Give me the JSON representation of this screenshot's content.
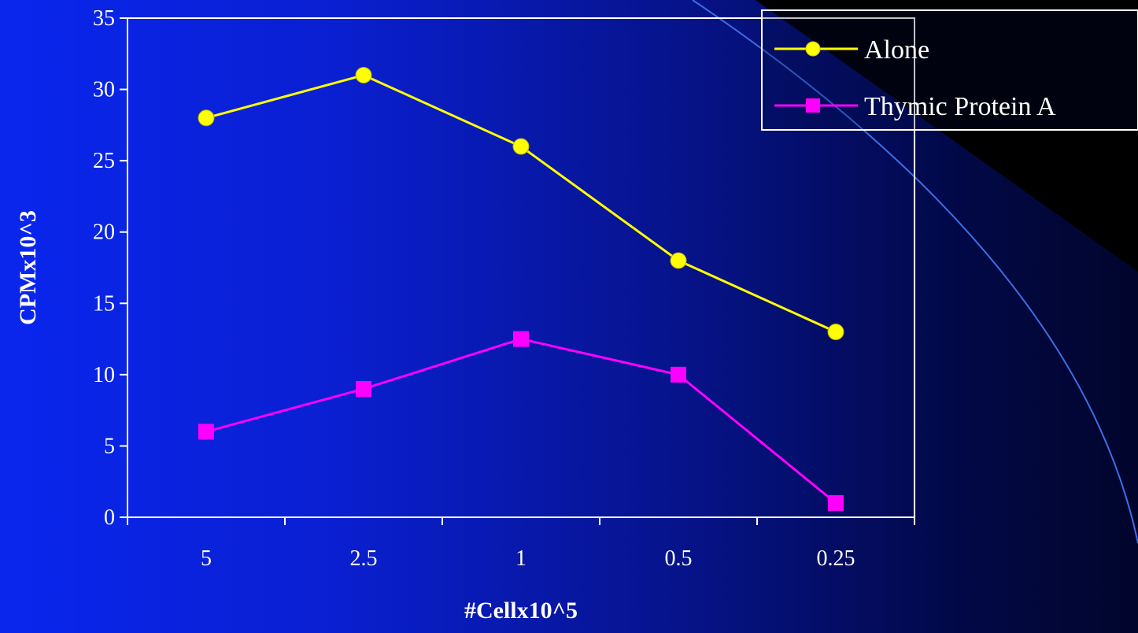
{
  "chart_data": {
    "type": "line",
    "categories": [
      "5",
      "2.5",
      "1",
      "0.5",
      "0.25"
    ],
    "series": [
      {
        "name": "Alone",
        "values": [
          28,
          31,
          26,
          18,
          13
        ],
        "color": "#ffff00",
        "marker": "circle"
      },
      {
        "name": "Thymic Protein A",
        "values": [
          6,
          9,
          12.5,
          10,
          1
        ],
        "color": "#ff00ff",
        "marker": "square"
      }
    ],
    "xlabel": "#Cellx10^5",
    "ylabel": "CPMx10^3",
    "ylim": [
      0,
      35
    ],
    "yticks": [
      0,
      5,
      10,
      15,
      20,
      25,
      30,
      35
    ],
    "grid": false,
    "legend_position": "top-right"
  },
  "colors": {
    "axis": "#ffffff",
    "background_start": "#0a26ee",
    "background_end": "#01052c",
    "decor_arc": "#3c6ee6"
  }
}
